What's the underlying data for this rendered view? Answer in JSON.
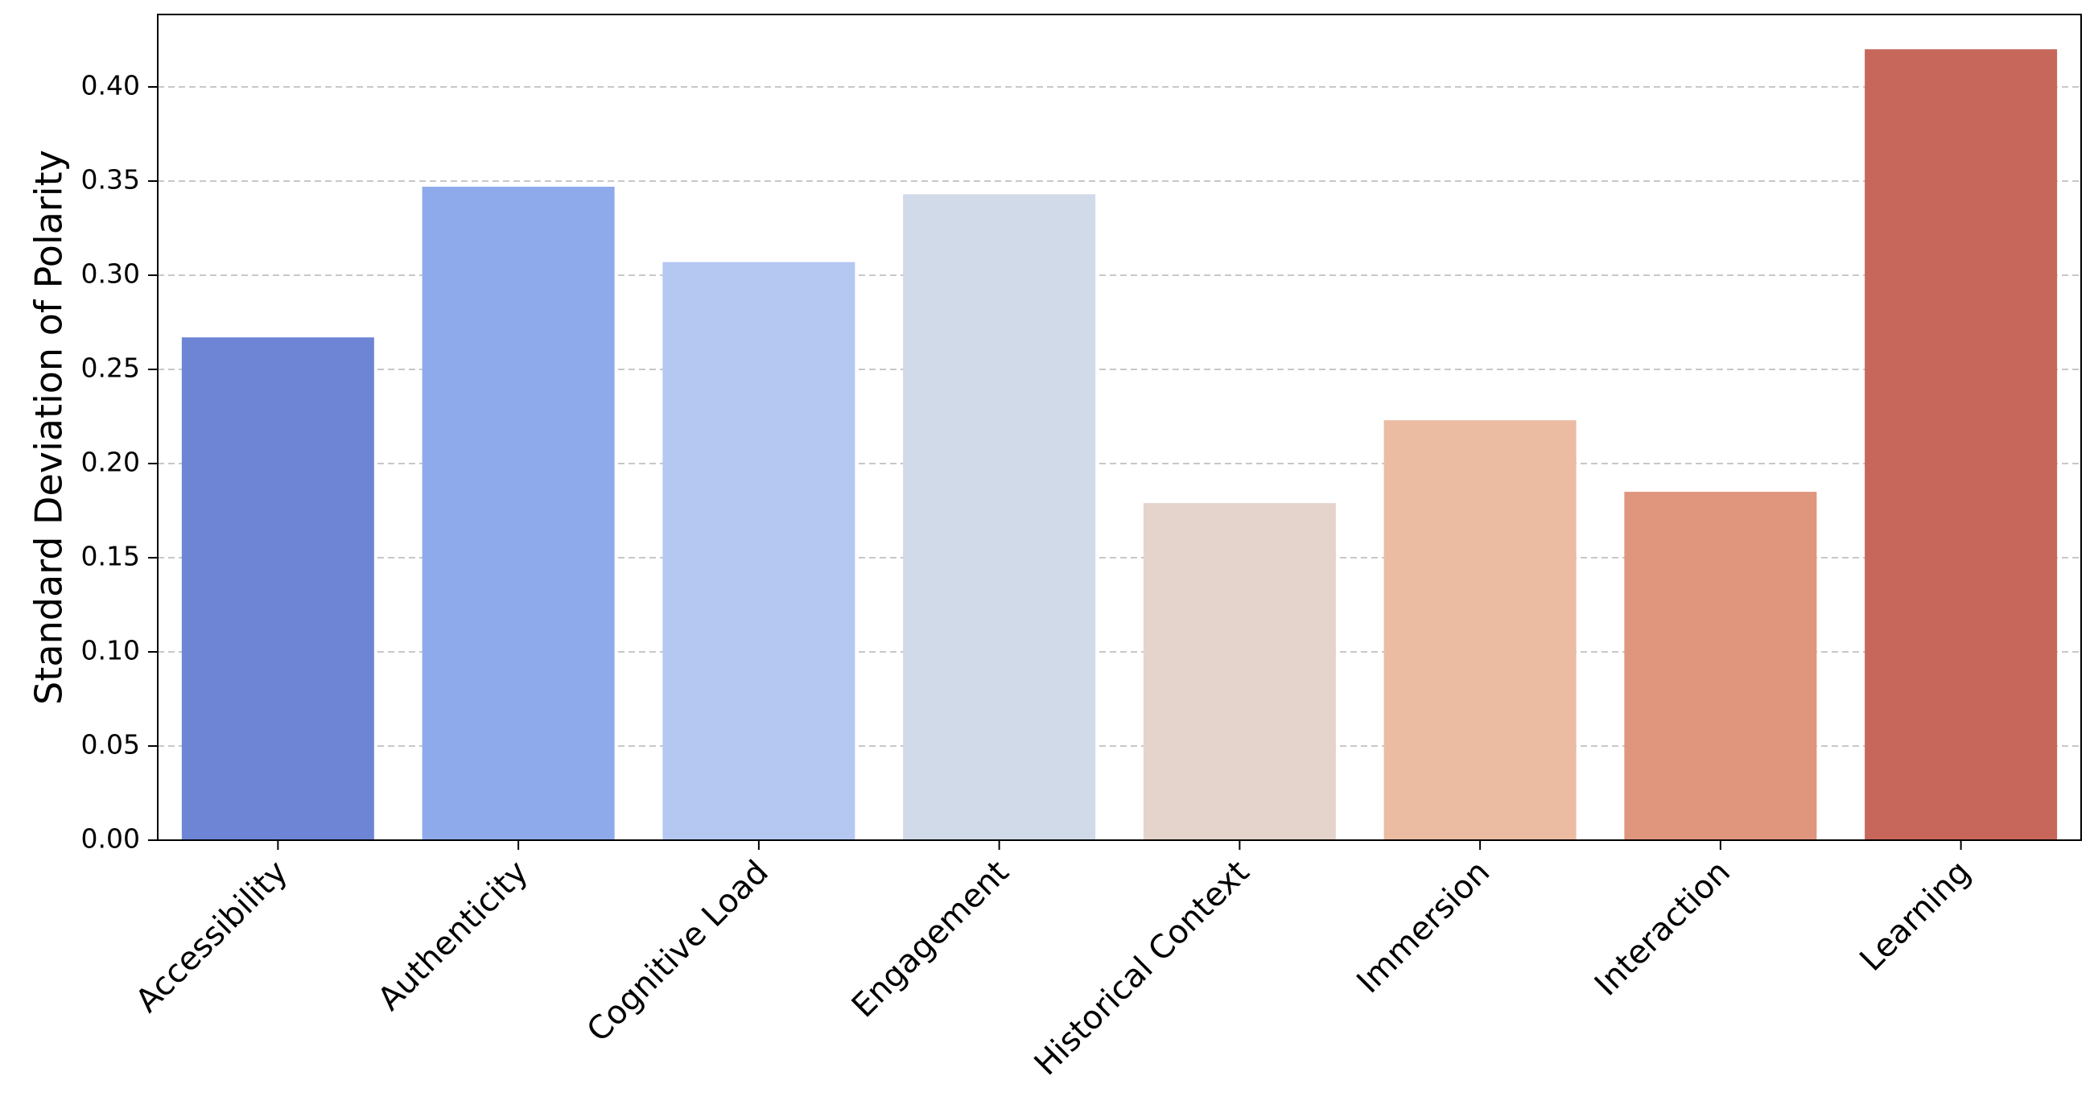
{
  "chart_data": {
    "type": "bar",
    "title": "",
    "xlabel": "",
    "ylabel": "Standard Deviation of Polarity",
    "categories": [
      "Accessibility",
      "Authenticity",
      "Cognitive Load",
      "Engagement",
      "Historical Context",
      "Immersion",
      "Interaction",
      "Learning"
    ],
    "values": [
      0.267,
      0.347,
      0.307,
      0.343,
      0.179,
      0.223,
      0.185,
      0.42
    ],
    "colors": [
      "#6e85d5",
      "#8faaeb",
      "#b4c8f2",
      "#d0dae8",
      "#e5d4cb",
      "#ebbba2",
      "#e0957d",
      "#c7675b"
    ],
    "ylim": [
      0,
      0.44
    ],
    "yticks": [
      "0.00",
      "0.05",
      "0.10",
      "0.15",
      "0.20",
      "0.25",
      "0.30",
      "0.35",
      "0.40"
    ],
    "grid": "y-dashed",
    "legend": false
  }
}
